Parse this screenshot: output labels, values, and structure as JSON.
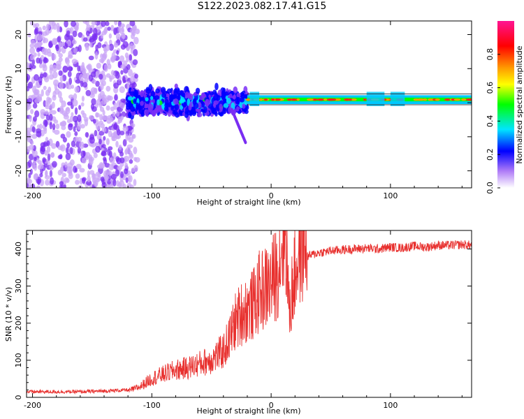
{
  "title": "S122.2023.082.17.41.G15",
  "chart_data": [
    {
      "type": "heatmap",
      "xlabel": "Height of straight line (km)",
      "ylabel": "Frequency (Hz)",
      "xlim": [
        -205,
        168
      ],
      "ylim": [
        -25,
        24
      ],
      "xticks": [
        -200,
        -100,
        0,
        100
      ],
      "yticks": [
        -20,
        -10,
        0,
        10,
        20
      ],
      "colorbar": {
        "label": "Normalized spectral amplitude",
        "range": [
          0,
          1
        ],
        "ticks": [
          0.0,
          0.2,
          0.4,
          0.6,
          0.8
        ],
        "colors": [
          "#ffffff",
          "#7b2ff7",
          "#0000ff",
          "#00e5ff",
          "#00ff00",
          "#ffff00",
          "#ff9900",
          "#ff0000",
          "#ff1493"
        ]
      },
      "features": [
        {
          "name": "scattered",
          "x_range": [
            -205,
            -120
          ],
          "f_range": [
            -25,
            24
          ]
        },
        {
          "name": "broadband",
          "x_range": [
            -120,
            -20
          ],
          "f_range": [
            -7,
            7
          ]
        },
        {
          "name": "tone",
          "x_range": [
            -20,
            168
          ],
          "f_center": 1
        }
      ]
    },
    {
      "type": "line",
      "xlabel": "Height of straight line (km)",
      "ylabel": "SNR (10 * v/v)",
      "xlim": [
        -205,
        168
      ],
      "ylim": [
        0,
        450
      ],
      "xticks": [
        -200,
        -100,
        0,
        100
      ],
      "yticks": [
        0,
        100,
        200,
        300,
        400
      ],
      "color": "#e8302e",
      "series": [
        {
          "x": [
            -205,
            -180,
            -160,
            -140,
            -120,
            -110,
            -100,
            -90,
            -80,
            -70,
            -60,
            -50,
            -40,
            -35,
            -30,
            -25,
            -20,
            -15,
            -10,
            -5,
            0,
            5,
            10,
            12,
            15,
            20,
            25,
            30,
            40,
            50,
            60,
            70,
            80,
            90,
            100,
            110,
            120,
            130,
            140,
            150,
            160,
            168
          ],
          "values": [
            10,
            10,
            10,
            12,
            15,
            25,
            45,
            55,
            65,
            70,
            80,
            90,
            110,
            140,
            180,
            200,
            210,
            220,
            250,
            260,
            270,
            300,
            380,
            420,
            200,
            300,
            360,
            380,
            390,
            395,
            398,
            400,
            402,
            400,
            405,
            403,
            408,
            405,
            410,
            410,
            412,
            410
          ]
        }
      ]
    }
  ]
}
